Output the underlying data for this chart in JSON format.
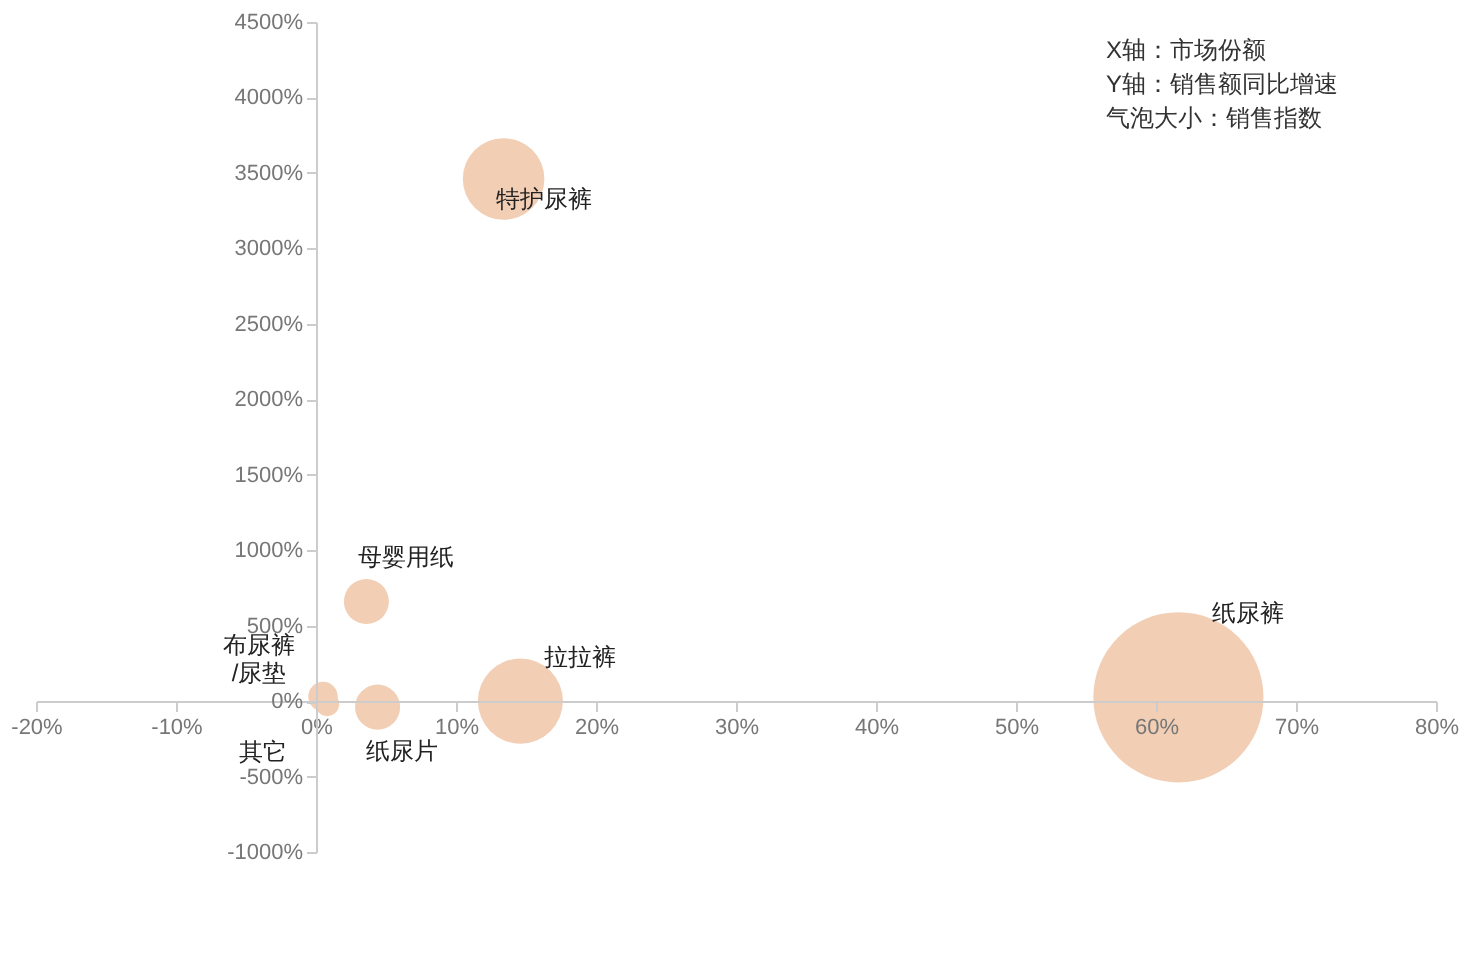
{
  "chart_data": {
    "type": "bubble",
    "series": [
      {
        "name": "特护尿裤",
        "color": "#f2cfb4",
        "x": [
          13.4
        ],
        "values": [
          3460
        ],
        "sizes": [
          0.23
        ]
      },
      {
        "name": "母婴用纸",
        "color": "#f2cfb4",
        "x": [
          3.6
        ],
        "values": [
          660
        ],
        "sizes": [
          0.07
        ]
      },
      {
        "name": "布尿裤\n/尿垫",
        "color": "#f2cfb4",
        "x": [
          0.5
        ],
        "values": [
          30
        ],
        "sizes": [
          0.03
        ]
      },
      {
        "name": "其它",
        "color": "#f2cfb4",
        "x": [
          0.8
        ],
        "values": [
          -20
        ],
        "sizes": [
          0.02
        ]
      },
      {
        "name": "纸尿片",
        "color": "#f2cfb4",
        "x": [
          4.4
        ],
        "values": [
          -40
        ],
        "sizes": [
          0.07
        ]
      },
      {
        "name": "拉拉裤",
        "color": "#f2cfb4",
        "x": [
          14.6
        ],
        "values": [
          0
        ],
        "sizes": [
          0.25
        ]
      },
      {
        "name": "纸尿裤",
        "color": "#f2cfb4",
        "x": [
          61.6
        ],
        "values": [
          25
        ],
        "sizes": [
          1
        ]
      }
    ],
    "xlim": [
      -20,
      80
    ],
    "xticks": [
      {
        "value": -20,
        "label": "-20%"
      },
      {
        "value": -10,
        "label": "-10%"
      },
      {
        "value": 0,
        "label": "0%"
      },
      {
        "value": 10,
        "label": "10%"
      },
      {
        "value": 20,
        "label": "20%"
      },
      {
        "value": 30,
        "label": "30%"
      },
      {
        "value": 40,
        "label": "40%"
      },
      {
        "value": 50,
        "label": "50%"
      },
      {
        "value": 60,
        "label": "60%"
      },
      {
        "value": 70,
        "label": "70%"
      },
      {
        "value": 80,
        "label": "80%"
      }
    ],
    "ylim": [
      -1000,
      4500
    ],
    "yticks": [
      {
        "value": -1000,
        "label": "-1000%"
      },
      {
        "value": -500,
        "label": "-500%"
      },
      {
        "value": 0,
        "label": "0%"
      },
      {
        "value": 500,
        "label": "500%"
      },
      {
        "value": 1000,
        "label": "1000%"
      },
      {
        "value": 1500,
        "label": "1500%"
      },
      {
        "value": 2000,
        "label": "2000%"
      },
      {
        "value": 2500,
        "label": "2500%"
      },
      {
        "value": 3000,
        "label": "3000%"
      },
      {
        "value": 3500,
        "label": "3500%"
      },
      {
        "value": 4000,
        "label": "4000%"
      },
      {
        "value": 4500,
        "label": "4500%"
      }
    ],
    "grid": false,
    "annotations": [
      "X轴：市场份额",
      "Y轴：销售额同比增速",
      "气泡大小：销售指数"
    ]
  }
}
